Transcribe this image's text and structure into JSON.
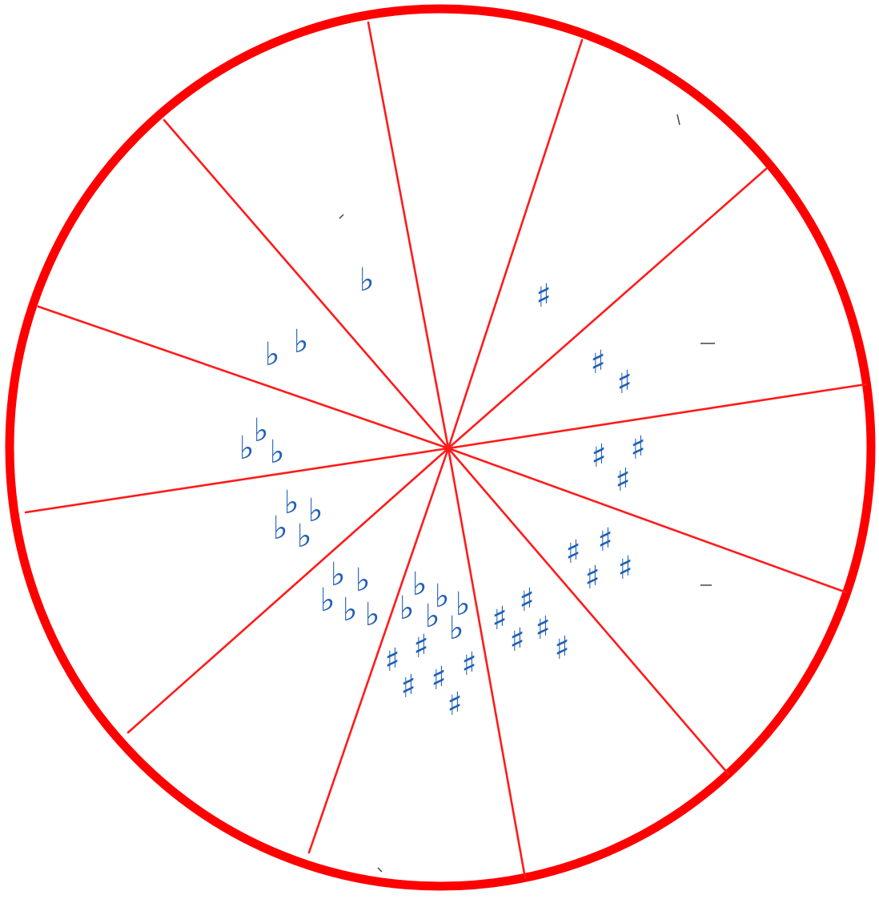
{
  "diagram": {
    "ring_color": "#ff0000",
    "spoke_color": "#ff1a1a",
    "symbol_color": "#1f5fb5",
    "segment_count": 12,
    "segments": [
      {
        "accidentals": ""
      },
      {
        "accidentals": "♯"
      },
      {
        "accidentals": "♯♯"
      },
      {
        "accidentals": "♯♯♯"
      },
      {
        "accidentals": "♯♯♯♯"
      },
      {
        "accidentals": "♯♯♯♯♯"
      },
      {
        "accidentals": "♯♯♯♯♯♯ ♭♭♭♭♭♭"
      },
      {
        "accidentals": "♭♭♭♭♭"
      },
      {
        "accidentals": "♭♭♭♭"
      },
      {
        "accidentals": "♭♭♭"
      },
      {
        "accidentals": "♭♭"
      },
      {
        "accidentals": "♭"
      }
    ]
  }
}
